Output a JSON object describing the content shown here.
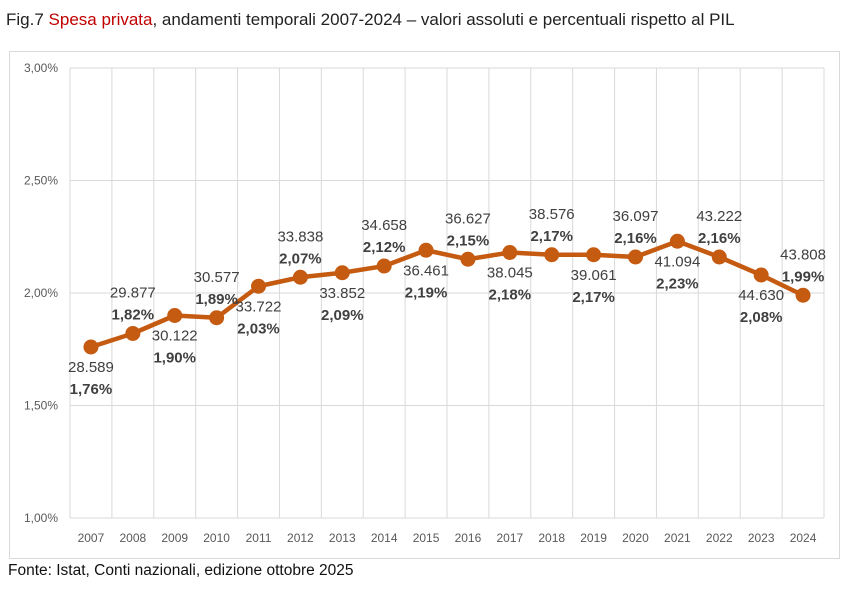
{
  "title": {
    "prefix": "Fig.7 ",
    "highlight": "Spesa privata",
    "rest": ", andamenti temporali 2007-2024 – valori assoluti e percentuali rispetto al PIL"
  },
  "source": "Fonte: Istat, Conti nazionali, edizione ottobre 2025",
  "chart_data": {
    "type": "line",
    "categories": [
      "2007",
      "2008",
      "2009",
      "2010",
      "2011",
      "2012",
      "2013",
      "2014",
      "2015",
      "2016",
      "2017",
      "2018",
      "2019",
      "2020",
      "2021",
      "2022",
      "2023",
      "2024"
    ],
    "series": [
      {
        "values": [
          1.76,
          1.82,
          1.9,
          1.89,
          2.03,
          2.07,
          2.09,
          2.12,
          2.19,
          2.15,
          2.18,
          2.17,
          2.17,
          2.16,
          2.23,
          2.16,
          2.08,
          1.99
        ],
        "color": "#c55a11"
      }
    ],
    "absolute_labels": [
      "28.589",
      "29.877",
      "30.122",
      "30.577",
      "33.722",
      "33.838",
      "33.852",
      "34.658",
      "36.461",
      "36.627",
      "38.045",
      "38.576",
      "39.061",
      "36.097",
      "41.094",
      "43.222",
      "44.630",
      "43.808"
    ],
    "percent_labels": [
      "1,76%",
      "1,82%",
      "1,90%",
      "1,89%",
      "2,03%",
      "2,07%",
      "2,09%",
      "2,12%",
      "2,19%",
      "2,15%",
      "2,18%",
      "2,17%",
      "2,17%",
      "2,16%",
      "2,23%",
      "2,16%",
      "2,08%",
      "1,99%"
    ],
    "label_position": [
      "below",
      "above",
      "below",
      "above",
      "below",
      "above",
      "below",
      "above",
      "below",
      "above",
      "below",
      "above",
      "below",
      "above",
      "below",
      "above",
      "below",
      "above"
    ],
    "ylim": [
      1.0,
      3.0
    ],
    "yticks": [
      "1,00%",
      "1,50%",
      "2,00%",
      "2,50%",
      "3,00%"
    ],
    "grid": true
  }
}
